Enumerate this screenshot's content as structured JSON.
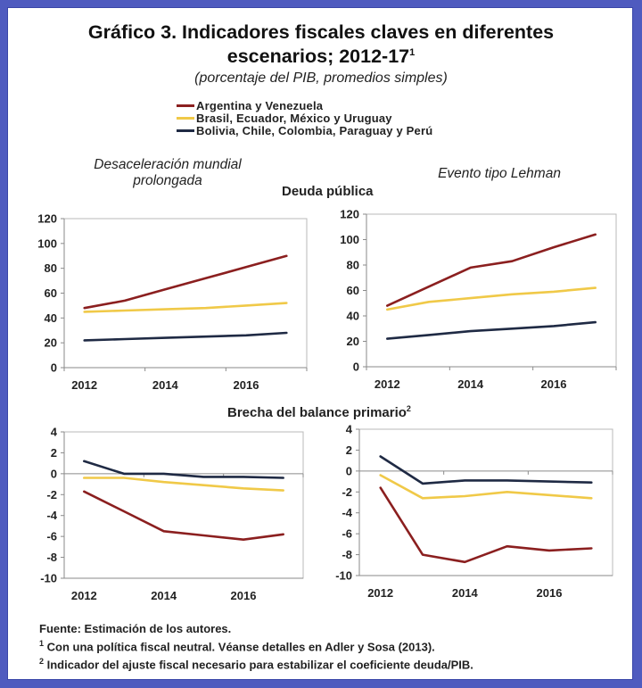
{
  "header": {
    "title_line1": "Gráfico 3. Indicadores fiscales claves en diferentes",
    "title_line2": "escenarios; 2012-17",
    "title_sup": "1",
    "subtitle": "(porcentaje del PIB, promedios simples)"
  },
  "legend": [
    {
      "label": "Argentina y Venezuela",
      "color": "#8b1f1f"
    },
    {
      "label": "Brasil, Ecuador, México y Uruguay",
      "color": "#f0c948"
    },
    {
      "label": "Bolivia, Chile, Colombia, Paraguay y Perú",
      "color": "#1f2a44"
    }
  ],
  "scenarios": {
    "left": "Desaceleración mundial prolongada",
    "right": "Evento tipo Lehman"
  },
  "sections": {
    "debt": "Deuda pública",
    "gap": "Brecha del balance primario",
    "gap_sup": "2"
  },
  "footnotes": {
    "source": "Fuente: Estimación de los autores.",
    "note1_sup": "1",
    "note1": " Con una política fiscal neutral. Véanse detalles en Adler y Sosa (2013).",
    "note2_sup": "2",
    "note2": " Indicador del ajuste fiscal necesario para estabilizar el coeficiente deuda/PIB."
  },
  "chart_data": [
    {
      "type": "line",
      "title": "Deuda pública — Desaceleración mundial prolongada",
      "x": [
        2012,
        2013,
        2014,
        2015,
        2016,
        2017
      ],
      "xtick_labels": [
        "2012",
        "2014",
        "2016"
      ],
      "ylim": [
        0,
        120
      ],
      "yticks": [
        0,
        20,
        40,
        60,
        80,
        100,
        120
      ],
      "zero_line": false,
      "series": [
        {
          "name": "Argentina y Venezuela",
          "color": "#8b1f1f",
          "values": [
            48,
            54,
            63,
            72,
            81,
            90
          ]
        },
        {
          "name": "Brasil, Ecuador, México y Uruguay",
          "color": "#f0c948",
          "values": [
            45,
            46,
            47,
            48,
            50,
            52
          ]
        },
        {
          "name": "Bolivia, Chile, Colombia, Paraguay y Perú",
          "color": "#1f2a44",
          "values": [
            22,
            23,
            24,
            25,
            26,
            28
          ]
        }
      ]
    },
    {
      "type": "line",
      "title": "Deuda pública — Evento tipo Lehman",
      "x": [
        2012,
        2013,
        2014,
        2015,
        2016,
        2017
      ],
      "xtick_labels": [
        "2012",
        "2014",
        "2016"
      ],
      "ylim": [
        0,
        120
      ],
      "yticks": [
        0,
        20,
        40,
        60,
        80,
        100,
        120
      ],
      "zero_line": false,
      "series": [
        {
          "name": "Argentina y Venezuela",
          "color": "#8b1f1f",
          "values": [
            48,
            63,
            78,
            83,
            94,
            104
          ]
        },
        {
          "name": "Brasil, Ecuador, México y Uruguay",
          "color": "#f0c948",
          "values": [
            45,
            51,
            54,
            57,
            59,
            62
          ]
        },
        {
          "name": "Bolivia, Chile, Colombia, Paraguay y Perú",
          "color": "#1f2a44",
          "values": [
            22,
            25,
            28,
            30,
            32,
            35
          ]
        }
      ]
    },
    {
      "type": "line",
      "title": "Brecha del balance primario — Desaceleración mundial prolongada",
      "x": [
        2012,
        2013,
        2014,
        2015,
        2016,
        2017
      ],
      "xtick_labels": [
        "2012",
        "2014",
        "2016"
      ],
      "ylim": [
        -10,
        4
      ],
      "yticks": [
        -10,
        -8,
        -6,
        -4,
        -2,
        0,
        2,
        4
      ],
      "zero_line": true,
      "series": [
        {
          "name": "Argentina y Venezuela",
          "color": "#8b1f1f",
          "values": [
            -1.7,
            -3.6,
            -5.5,
            -5.9,
            -6.3,
            -5.8
          ]
        },
        {
          "name": "Brasil, Ecuador, México y Uruguay",
          "color": "#f0c948",
          "values": [
            -0.4,
            -0.4,
            -0.8,
            -1.1,
            -1.4,
            -1.6
          ]
        },
        {
          "name": "Bolivia, Chile, Colombia, Paraguay y Perú",
          "color": "#1f2a44",
          "values": [
            1.2,
            0.0,
            0.0,
            -0.3,
            -0.3,
            -0.4
          ]
        }
      ]
    },
    {
      "type": "line",
      "title": "Brecha del balance primario — Evento tipo Lehman",
      "x": [
        2012,
        2013,
        2014,
        2015,
        2016,
        2017
      ],
      "xtick_labels": [
        "2012",
        "2014",
        "2016"
      ],
      "ylim": [
        -10,
        4
      ],
      "yticks": [
        -10,
        -8,
        -6,
        -4,
        -2,
        0,
        2,
        4
      ],
      "zero_line": true,
      "series": [
        {
          "name": "Argentina y Venezuela",
          "color": "#8b1f1f",
          "values": [
            -1.6,
            -8.0,
            -8.7,
            -7.2,
            -7.6,
            -7.4
          ]
        },
        {
          "name": "Brasil, Ecuador, México y Uruguay",
          "color": "#f0c948",
          "values": [
            -0.4,
            -2.6,
            -2.4,
            -2.0,
            -2.3,
            -2.6
          ]
        },
        {
          "name": "Bolivia, Chile, Colombia, Paraguay y Perú",
          "color": "#1f2a44",
          "values": [
            1.4,
            -1.2,
            -0.9,
            -0.9,
            -1.0,
            -1.1
          ]
        }
      ]
    }
  ]
}
